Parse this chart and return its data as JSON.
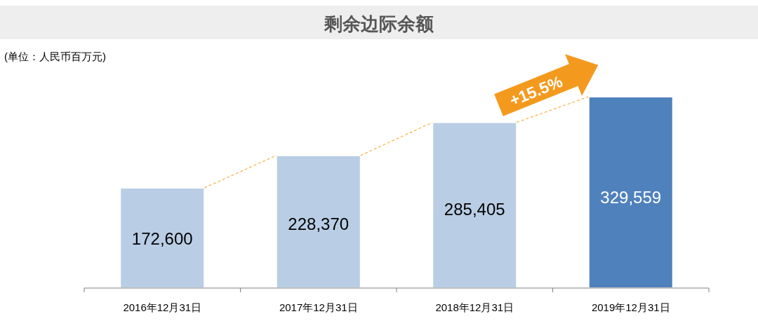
{
  "chart_data": {
    "type": "bar",
    "title": "剩余边际余额",
    "annotations": [
      "(单位：人民币百万元)",
      "+15.5%"
    ],
    "categories": [
      "2016年12月31日",
      "2017年12月31日",
      "2018年12月31日",
      "2019年12月31日"
    ],
    "values": [
      172600,
      228370,
      285405,
      329559
    ],
    "value_labels": [
      "172,600",
      "228,370",
      "285,405",
      "329,559"
    ],
    "colors": [
      "#b9cde5",
      "#b9cde5",
      "#b9cde5",
      "#4f81bd"
    ],
    "tick_labels": "x"
  }
}
